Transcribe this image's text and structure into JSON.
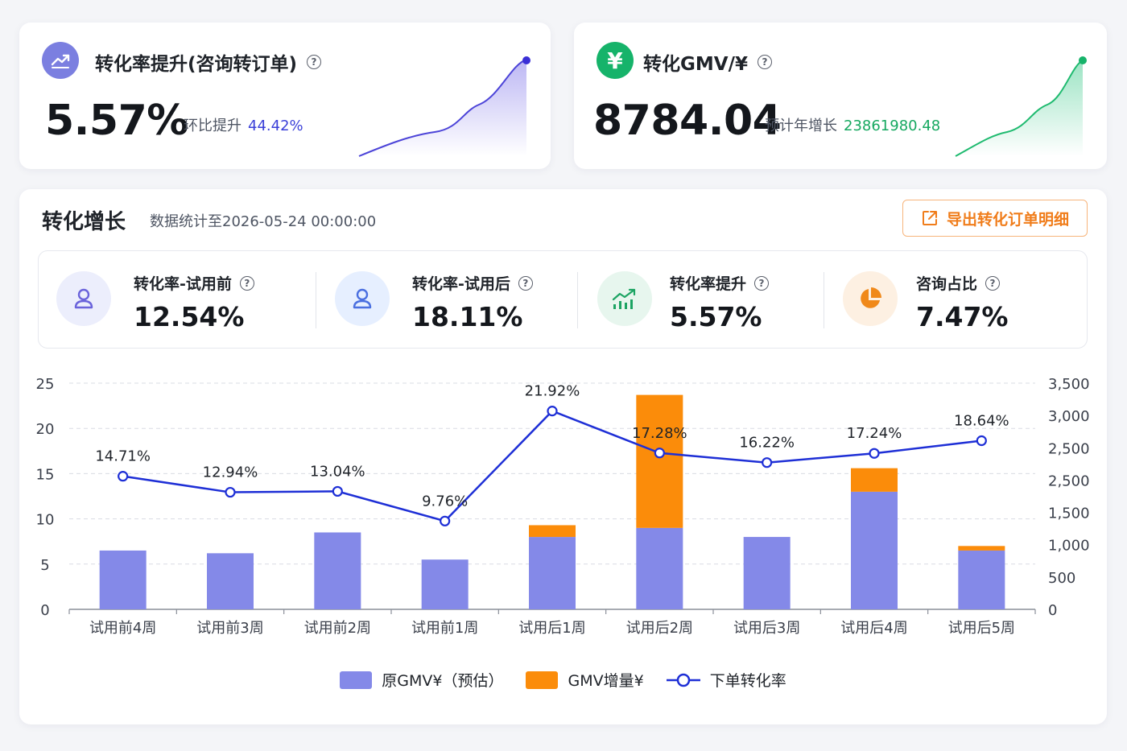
{
  "kpi_cards": [
    {
      "title": "转化率提升(咨询转订单)",
      "icon": "trend-up-icon",
      "icon_color": "#7b7fe0",
      "value": "5.57%",
      "sub_label": "环比提升",
      "sub_value": "44.42%",
      "sub_value_color": "#3a3fd8",
      "spark_color": "#4c44d8"
    },
    {
      "title": "转化GMV/¥",
      "icon": "yen-icon",
      "icon_color": "#16b36a",
      "value": "8784.04",
      "sub_label": "预计年增长",
      "sub_value": "23861980.48",
      "sub_value_color": "#16a860",
      "spark_color": "#1eba6f"
    }
  ],
  "section": {
    "title": "转化增长",
    "subtitle": "数据统计至2026-05-24 00:00:00",
    "export_label": "导出转化订单明细"
  },
  "stats": [
    {
      "label": "转化率-试用前",
      "value": "12.54%",
      "icon": "user-icon",
      "icon_bg": "#eceefc",
      "icon_color": "#6a63db"
    },
    {
      "label": "转化率-试用后",
      "value": "18.11%",
      "icon": "user-icon",
      "icon_bg": "#e6efff",
      "icon_color": "#4a6fe0"
    },
    {
      "label": "转化率提升",
      "value": "5.57%",
      "icon": "bar-trend-icon",
      "icon_bg": "#e7f6ee",
      "icon_color": "#1ca463"
    },
    {
      "label": "咨询占比",
      "value": "7.47%",
      "icon": "pie-icon",
      "icon_bg": "#fdf0e2",
      "icon_color": "#f0891a"
    }
  ],
  "legend": {
    "base": "原GMV¥（预估）",
    "inc": "GMV增量¥",
    "rate": "下单转化率"
  },
  "chart_data": {
    "type": "bar",
    "categories": [
      "试用前4周",
      "试用前3周",
      "试用前2周",
      "试用前1周",
      "试用后1周",
      "试用后2周",
      "试用后3周",
      "试用后4周",
      "试用后5周"
    ],
    "series": [
      {
        "name": "原GMV¥（预估）",
        "type": "bar",
        "stack": "gmv",
        "axis": "left",
        "color": "#8489e8",
        "values": [
          6.5,
          6.2,
          8.5,
          5.5,
          8.0,
          9.0,
          8.0,
          13.0,
          6.5
        ]
      },
      {
        "name": "GMV增量¥",
        "type": "bar",
        "stack": "gmv",
        "axis": "left",
        "color": "#fb8c0a",
        "values": [
          0,
          0,
          0,
          0,
          1.3,
          14.7,
          0,
          2.6,
          0.5
        ]
      },
      {
        "name": "下单转化率",
        "type": "line",
        "axis": "left",
        "color": "#1e2fd6",
        "values": [
          14.71,
          12.94,
          13.04,
          9.76,
          21.92,
          17.28,
          16.22,
          17.24,
          18.64
        ],
        "labels": [
          "14.71%",
          "12.94%",
          "13.04%",
          "9.76%",
          "21.92%",
          "17.28%",
          "16.22%",
          "17.24%",
          "18.64%"
        ]
      }
    ],
    "y_left": {
      "ticks": [
        "0",
        "5",
        "10",
        "15",
        "20",
        "25"
      ],
      "ylim": [
        0,
        25
      ]
    },
    "y_right": {
      "ticks": [
        "0",
        "500",
        "1,000",
        "1,500",
        "2,500",
        "2,500",
        "3,000",
        "3,500"
      ]
    },
    "grid": true,
    "legend_position": "bottom"
  }
}
